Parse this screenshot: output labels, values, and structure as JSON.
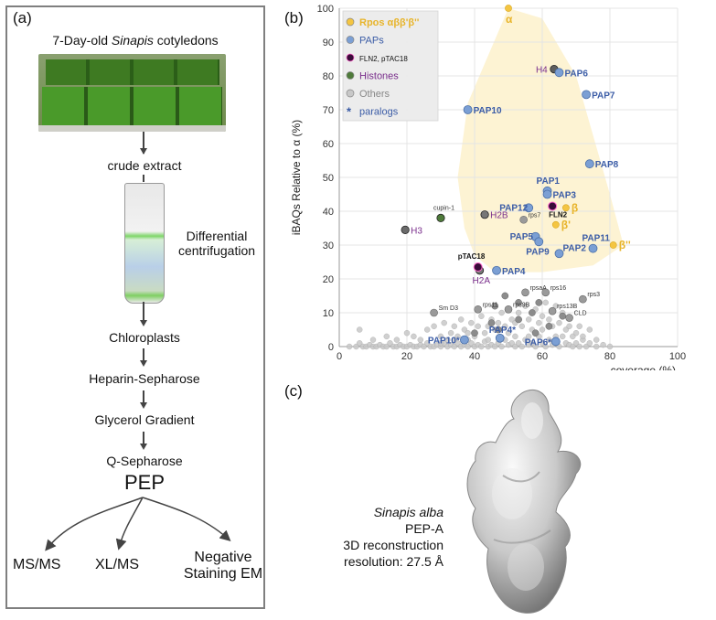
{
  "panels": {
    "a": "(a)",
    "b": "(b)",
    "c": "(c)"
  },
  "flowchart": {
    "top_title_prefix": "7-Day-old ",
    "top_title_italic": "Sinapis",
    "top_title_suffix": " cotyledons",
    "crude_extract": "crude extract",
    "differential_1": "Differential",
    "differential_2": "centrifugation",
    "chloroplasts": "Chloroplasts",
    "heparin": "Heparin-Sepharose",
    "glycerol": "Glycerol Gradient",
    "qsepharose": "Q-Sepharose",
    "pep": "PEP",
    "msms": "MS/MS",
    "xlms": "XL/MS",
    "negative_1": "Negative",
    "negative_2": "Staining EM"
  },
  "reconstruction": {
    "species": "Sinapis alba",
    "line2": "PEP-A",
    "line3": "3D reconstruction",
    "line4": "resolution: 27.5 Å"
  },
  "chart_data": {
    "type": "scatter",
    "xlabel": "coverage (%)",
    "ylabel": "iBAQs Relative to α (%)",
    "xlim": [
      0,
      100
    ],
    "ylim": [
      0,
      100
    ],
    "xticks": [
      0,
      20,
      40,
      60,
      80,
      100
    ],
    "yticks": [
      0,
      10,
      20,
      30,
      40,
      50,
      60,
      70,
      80,
      90,
      100
    ],
    "colors": {
      "rpos": "#f4c542",
      "paps": "#7b9fd4",
      "fln": "#3a0c3a",
      "histones": "#4e7a3a",
      "others": "#c8c8c8",
      "others_dark": "#8c8c8c",
      "pap_text": "#3b5ca6",
      "rpos_text": "#e8b42a",
      "histone_text": "#7a2f8c",
      "hull": "#fdf3d3"
    },
    "legend": [
      {
        "label": "Rpos αββ'β''",
        "kind": "rpos"
      },
      {
        "label": "PAPs",
        "kind": "paps"
      },
      {
        "label": "FLN2, pTAC18",
        "kind": "fln"
      },
      {
        "label": "Histones",
        "kind": "histones"
      },
      {
        "label": "Others",
        "kind": "others"
      },
      {
        "label": "paralogs",
        "kind": "star",
        "marker": "*"
      }
    ],
    "hull": [
      [
        50,
        100
      ],
      [
        38,
        72
      ],
      [
        35,
        50
      ],
      [
        37,
        35
      ],
      [
        40,
        27
      ],
      [
        46,
        22
      ],
      [
        60,
        22
      ],
      [
        75,
        24
      ],
      [
        84,
        30
      ],
      [
        80,
        45
      ],
      [
        70,
        80
      ],
      [
        60,
        97
      ]
    ],
    "rpos": [
      {
        "label": "α",
        "x": 50,
        "y": 100
      },
      {
        "label": "β",
        "x": 67,
        "y": 41
      },
      {
        "label": "β'",
        "x": 64,
        "y": 36
      },
      {
        "label": "β''",
        "x": 81,
        "y": 30
      }
    ],
    "paps": [
      {
        "label": "PAP6",
        "x": 65,
        "y": 81
      },
      {
        "label": "PAP7",
        "x": 73,
        "y": 74.5
      },
      {
        "label": "PAP10",
        "x": 38,
        "y": 70
      },
      {
        "label": "PAP8",
        "x": 74,
        "y": 54
      },
      {
        "label": "PAP1",
        "x": 61.5,
        "y": 46
      },
      {
        "label": "PAP3",
        "x": 61.5,
        "y": 45
      },
      {
        "label": "PAP12",
        "x": 56,
        "y": 41
      },
      {
        "label": "PAP5",
        "x": 58,
        "y": 32.5
      },
      {
        "label": "PAP9",
        "x": 59,
        "y": 31
      },
      {
        "label": "PAP2",
        "x": 65,
        "y": 27.5
      },
      {
        "label": "PAP11",
        "x": 75,
        "y": 29
      },
      {
        "label": "PAP4",
        "x": 46.5,
        "y": 22.5
      },
      {
        "label": "PAP4*",
        "x": 47.5,
        "y": 2.5
      },
      {
        "label": "PAP10*",
        "x": 37,
        "y": 2
      },
      {
        "label": "PAP6*",
        "x": 64,
        "y": 1.5
      }
    ],
    "fln": [
      {
        "label": "FLN2",
        "x": 63,
        "y": 41.5
      },
      {
        "label": "pTAC18",
        "x": 41,
        "y": 23.5
      }
    ],
    "histones": [
      {
        "label": "H4",
        "x": 63.5,
        "y": 82,
        "color": "#5e5e5e"
      },
      {
        "label": "H2B",
        "x": 43,
        "y": 39,
        "color": "#777777"
      },
      {
        "label": "H3",
        "x": 19.5,
        "y": 34.5,
        "color": "#6a6a6a"
      },
      {
        "label": "H2A",
        "x": 41.5,
        "y": 22.5,
        "color": "#777777"
      },
      {
        "label": "cupin-1",
        "x": 30,
        "y": 38,
        "color": "#4e7a3a"
      }
    ],
    "others_labeled": [
      {
        "label": "rps7",
        "x": 54.5,
        "y": 37.5
      },
      {
        "label": "rpsaA",
        "x": 55,
        "y": 16
      },
      {
        "label": "rps16",
        "x": 61,
        "y": 16
      },
      {
        "label": "rps3",
        "x": 72,
        "y": 14
      },
      {
        "label": "Sm D3",
        "x": 28,
        "y": 10
      },
      {
        "label": "rps11",
        "x": 41,
        "y": 11
      },
      {
        "label": "rps9B",
        "x": 50,
        "y": 11
      },
      {
        "label": "rps13B",
        "x": 63,
        "y": 10.5
      },
      {
        "label": "CLD",
        "x": 68,
        "y": 8.5
      }
    ],
    "others": [
      [
        3,
        0
      ],
      [
        5,
        0
      ],
      [
        6,
        1
      ],
      [
        7,
        0
      ],
      [
        8,
        0
      ],
      [
        9,
        0.5
      ],
      [
        10,
        0
      ],
      [
        11,
        0
      ],
      [
        12,
        0.5
      ],
      [
        13,
        0
      ],
      [
        14,
        0
      ],
      [
        15,
        1
      ],
      [
        16,
        0
      ],
      [
        17,
        0
      ],
      [
        18,
        0.5
      ],
      [
        19,
        0
      ],
      [
        20,
        0
      ],
      [
        21,
        0.5
      ],
      [
        22,
        0
      ],
      [
        23,
        0
      ],
      [
        24,
        0.5
      ],
      [
        25,
        0
      ],
      [
        26,
        1
      ],
      [
        27,
        0
      ],
      [
        28,
        0
      ],
      [
        29,
        0.5
      ],
      [
        30,
        0
      ],
      [
        31,
        1
      ],
      [
        32,
        0
      ],
      [
        33,
        0.5
      ],
      [
        34,
        0
      ],
      [
        35,
        1
      ],
      [
        36,
        0
      ],
      [
        37,
        0.5
      ],
      [
        38,
        0
      ],
      [
        39,
        1
      ],
      [
        40,
        0
      ],
      [
        41,
        0.5
      ],
      [
        42,
        0
      ],
      [
        43,
        1.5
      ],
      [
        44,
        0
      ],
      [
        45,
        0.5
      ],
      [
        46,
        0
      ],
      [
        47,
        1
      ],
      [
        48,
        0
      ],
      [
        49,
        2
      ],
      [
        50,
        0.5
      ],
      [
        51,
        1
      ],
      [
        52,
        0
      ],
      [
        53,
        1
      ],
      [
        54,
        0
      ],
      [
        55,
        2
      ],
      [
        56,
        0.5
      ],
      [
        57,
        1
      ],
      [
        58,
        0
      ],
      [
        59,
        3
      ],
      [
        60,
        1
      ],
      [
        61,
        0
      ],
      [
        62,
        2
      ],
      [
        63,
        0.5
      ],
      [
        64,
        1
      ],
      [
        65,
        0
      ],
      [
        66,
        3
      ],
      [
        67,
        1
      ],
      [
        68,
        0.5
      ],
      [
        69,
        0
      ],
      [
        70,
        1
      ],
      [
        71,
        0
      ],
      [
        72,
        2
      ],
      [
        73,
        0
      ],
      [
        74,
        1
      ],
      [
        76,
        0
      ],
      [
        78,
        0.5
      ],
      [
        80,
        0
      ],
      [
        6,
        5
      ],
      [
        10,
        2
      ],
      [
        14,
        3
      ],
      [
        17,
        2
      ],
      [
        20,
        4
      ],
      [
        22,
        3
      ],
      [
        24,
        2
      ],
      [
        26,
        5
      ],
      [
        28,
        6
      ],
      [
        30,
        3
      ],
      [
        31,
        7
      ],
      [
        32,
        2
      ],
      [
        33,
        4
      ],
      [
        34,
        6
      ],
      [
        35,
        3
      ],
      [
        36,
        8
      ],
      [
        37,
        5
      ],
      [
        38,
        4
      ],
      [
        39,
        7
      ],
      [
        40,
        3
      ],
      [
        41,
        6
      ],
      [
        42,
        9
      ],
      [
        43,
        4
      ],
      [
        44,
        6
      ],
      [
        45,
        8
      ],
      [
        46,
        5
      ],
      [
        47,
        7
      ],
      [
        48,
        10
      ],
      [
        49,
        6
      ],
      [
        50,
        4
      ],
      [
        51,
        8
      ],
      [
        52,
        7
      ],
      [
        53,
        10
      ],
      [
        54,
        6
      ],
      [
        55,
        12
      ],
      [
        56,
        8
      ],
      [
        57,
        5
      ],
      [
        58,
        11
      ],
      [
        59,
        7
      ],
      [
        60,
        9
      ],
      [
        61,
        13
      ],
      [
        62,
        8
      ],
      [
        63,
        6
      ],
      [
        64,
        12
      ],
      [
        65,
        7
      ],
      [
        66,
        10
      ],
      [
        67,
        5
      ],
      [
        68,
        6
      ],
      [
        69,
        3
      ],
      [
        70,
        4
      ],
      [
        71,
        6
      ],
      [
        72,
        3
      ],
      [
        74,
        5
      ],
      [
        76,
        2
      ],
      [
        30,
        1
      ],
      [
        34,
        2
      ],
      [
        38,
        2
      ],
      [
        44,
        2
      ],
      [
        52,
        3
      ],
      [
        56,
        3
      ],
      [
        60,
        5
      ],
      [
        64,
        3
      ]
    ],
    "others_dark": [
      [
        41,
        11
      ],
      [
        46,
        12
      ],
      [
        50,
        11
      ],
      [
        49,
        15
      ],
      [
        55,
        16
      ],
      [
        53,
        13
      ],
      [
        61,
        16
      ],
      [
        59,
        13
      ],
      [
        72,
        14
      ],
      [
        45,
        7
      ],
      [
        53,
        8
      ],
      [
        57,
        10
      ],
      [
        62,
        6
      ],
      [
        66,
        9
      ],
      [
        40,
        4
      ],
      [
        47,
        5
      ],
      [
        58,
        4
      ]
    ]
  }
}
